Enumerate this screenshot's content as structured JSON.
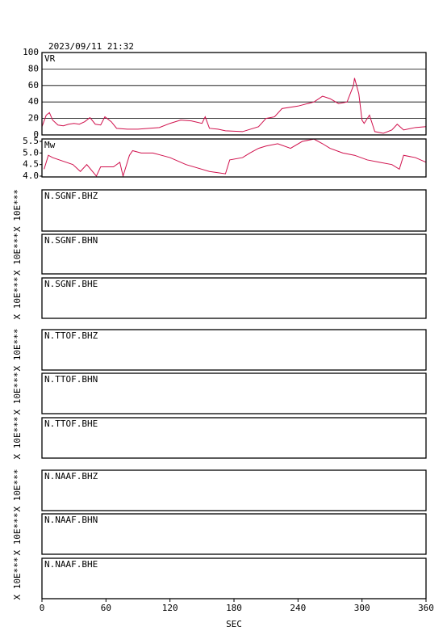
{
  "chart_data": [
    {
      "type": "line",
      "title": "2023/09/11 21:32",
      "xlim": [
        0,
        360
      ],
      "ylim": [
        0,
        100
      ],
      "yticks": [
        0,
        20,
        40,
        60,
        80,
        100
      ],
      "grid": true,
      "x": [
        0,
        4,
        7,
        10,
        15,
        20,
        25,
        30,
        35,
        40,
        45,
        50,
        55,
        59,
        65,
        70,
        80,
        90,
        100,
        110,
        120,
        130,
        140,
        150,
        153,
        157,
        165,
        172,
        188,
        203,
        210,
        218,
        225,
        240,
        255,
        263,
        270,
        278,
        286,
        292,
        293,
        297,
        300,
        302,
        307,
        312,
        320,
        328,
        333,
        339,
        350,
        360
      ],
      "series": [
        {
          "name": "VR",
          "color": "#d0104c",
          "values": [
            10,
            24,
            27,
            18,
            12,
            11,
            13,
            14,
            13,
            16,
            21,
            13,
            12,
            22,
            16,
            8,
            7,
            7,
            8,
            9,
            14,
            18,
            17,
            14,
            22,
            8,
            7,
            5,
            4,
            10,
            20,
            22,
            32,
            35,
            40,
            47,
            44,
            38,
            40,
            60,
            69,
            50,
            18,
            14,
            24,
            4,
            2,
            6,
            13,
            6,
            9,
            10
          ]
        }
      ]
    },
    {
      "type": "line",
      "xlim": [
        0,
        360
      ],
      "ylim": [
        3.965,
        5.605
      ],
      "yticks": [
        {
          "value": 4.0,
          "label": "4.0"
        },
        4.5,
        {
          "value": 5.0,
          "label": "5.0"
        },
        5.5
      ],
      "grid": false,
      "x": [
        2,
        6,
        10,
        29,
        36,
        42,
        51,
        55,
        67,
        73,
        76,
        82,
        85,
        93,
        104,
        112,
        120,
        135,
        157,
        172,
        176,
        188,
        195,
        203,
        210,
        221,
        233,
        244,
        255,
        263,
        270,
        282,
        293,
        305,
        316,
        328,
        335,
        339,
        350,
        360
      ],
      "series": [
        {
          "name": "Mw",
          "color": "#d0104c",
          "values": [
            4.3,
            4.9,
            4.8,
            4.5,
            4.2,
            4.5,
            4.0,
            4.4,
            4.4,
            4.6,
            4.0,
            4.9,
            5.1,
            5.0,
            5.0,
            4.9,
            4.8,
            4.5,
            4.2,
            4.1,
            4.7,
            4.8,
            5.0,
            5.2,
            5.3,
            5.4,
            5.2,
            5.5,
            5.6,
            5.4,
            5.2,
            5.0,
            4.9,
            4.7,
            4.6,
            4.5,
            4.3,
            4.9,
            4.8,
            4.6
          ]
        }
      ]
    },
    {
      "type": "panel",
      "label": "N.SGNF.BHZ",
      "scale_label": "X 10E***"
    },
    {
      "type": "panel",
      "label": "N.SGNF.BHN",
      "scale_label": "X 10E***"
    },
    {
      "type": "panel",
      "label": "N.SGNF.BHE",
      "scale_label": "X 10E***"
    },
    {
      "type": "panel",
      "label": "N.TTOF.BHZ",
      "scale_label": "X 10E***"
    },
    {
      "type": "panel",
      "label": "N.TTOF.BHN",
      "scale_label": "X 10E***"
    },
    {
      "type": "panel",
      "label": "N.TTOF.BHE",
      "scale_label": "X 10E***"
    },
    {
      "type": "panel",
      "label": "N.NAAF.BHZ",
      "scale_label": "X 10E***"
    },
    {
      "type": "panel",
      "label": "N.NAAF.BHN",
      "scale_label": "X 10E***"
    },
    {
      "type": "panel",
      "label": "N.NAAF.BHE",
      "scale_label": "X 10E***",
      "xlim": [
        0,
        360
      ],
      "xticks": [
        0,
        60,
        120,
        180,
        240,
        300,
        360
      ],
      "xlabel": "SEC"
    }
  ]
}
